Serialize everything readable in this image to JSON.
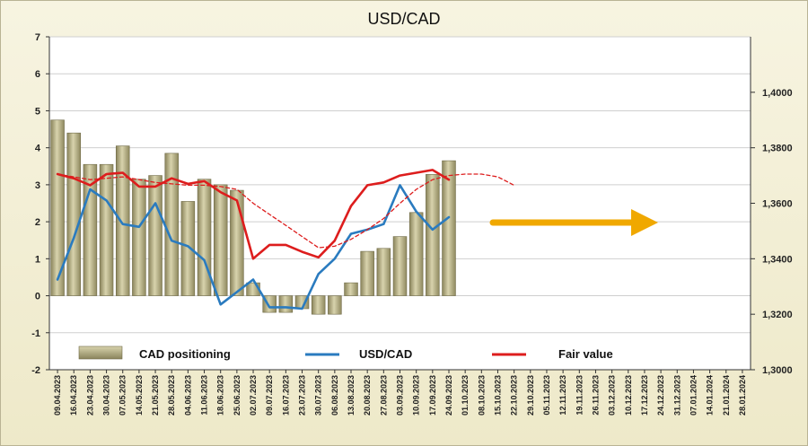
{
  "chart_data": {
    "type": "bar",
    "title": "USD/CAD",
    "x_labels": [
      "09.04.2023",
      "16.04.2023",
      "23.04.2023",
      "30.04.2023",
      "07.05.2023",
      "14.05.2023",
      "21.05.2023",
      "28.05.2023",
      "04.06.2023",
      "11.06.2023",
      "18.06.2023",
      "25.06.2023",
      "02.07.2023",
      "09.07.2023",
      "16.07.2023",
      "23.07.2023",
      "30.07.2023",
      "06.08.2023",
      "13.08.2023",
      "20.08.2023",
      "27.08.2023",
      "03.09.2023",
      "10.09.2023",
      "17.09.2023",
      "24.09.2023",
      "01.10.2023",
      "08.10.2023",
      "15.10.2023",
      "22.10.2023",
      "29.10.2023",
      "05.11.2023",
      "12.11.2023",
      "19.11.2023",
      "26.11.2023",
      "03.12.2023",
      "10.12.2023",
      "17.12.2023",
      "24.12.2023",
      "31.12.2023",
      "07.01.2024",
      "14.01.2024",
      "21.01.2024",
      "28.01.2024"
    ],
    "y_left": {
      "min": -2,
      "max": 7,
      "ticks": [
        -2,
        -1,
        0,
        1,
        2,
        3,
        4,
        5,
        6,
        7
      ]
    },
    "y_right": {
      "min": 1.3,
      "max": 1.42,
      "ticks": [
        "1,3000",
        "1,3200",
        "1,3400",
        "1,3600",
        "1,3800",
        "1,4000"
      ]
    },
    "series": [
      {
        "name": "CAD positioning",
        "kind": "bar",
        "axis": "left",
        "color": "#b2ab7e",
        "values": [
          4.75,
          4.4,
          3.55,
          3.55,
          4.05,
          3.15,
          3.25,
          3.85,
          2.55,
          3.15,
          3.0,
          2.85,
          0.35,
          -0.45,
          -0.45,
          -0.35,
          -0.5,
          -0.5,
          0.35,
          1.2,
          1.28,
          1.6,
          2.25,
          3.28,
          3.65
        ]
      },
      {
        "name": "USD/CAD",
        "kind": "line",
        "axis": "right",
        "color": "#2a7bbf",
        "values": [
          1.3325,
          1.3475,
          1.365,
          1.361,
          1.3525,
          1.3515,
          1.36,
          1.3465,
          1.3445,
          1.3395,
          1.3235,
          1.328,
          1.3325,
          1.3225,
          1.3225,
          1.322,
          1.3345,
          1.34,
          1.349,
          1.3505,
          1.3525,
          1.3665,
          1.357,
          1.3505,
          1.355
        ]
      },
      {
        "name": "Fair value",
        "kind": "line",
        "axis": "right",
        "color": "#dd1d1d",
        "values": [
          1.3705,
          1.369,
          1.3665,
          1.3705,
          1.371,
          1.366,
          1.366,
          1.369,
          1.367,
          1.368,
          1.364,
          1.361,
          1.34,
          1.345,
          1.345,
          1.3425,
          1.3405,
          1.3465,
          1.359,
          1.3665,
          1.3675,
          1.37,
          1.371,
          1.372,
          1.3685
        ]
      },
      {
        "name": "Fair value projection",
        "kind": "dashed-line",
        "axis": "right",
        "color": "#dd1d1d",
        "values": [
          1.3705,
          1.3695,
          1.3685,
          1.369,
          1.3695,
          1.3685,
          1.3675,
          1.367,
          1.3665,
          1.3665,
          1.366,
          1.365,
          1.36,
          1.356,
          1.352,
          1.348,
          1.344,
          1.3445,
          1.347,
          1.3505,
          1.3545,
          1.36,
          1.365,
          1.3685,
          1.37,
          1.3705,
          1.3705,
          1.3695,
          1.3665
        ]
      }
    ],
    "legend": [
      {
        "label": "CAD positioning",
        "symbol": "bar",
        "color": "#b2ab7e"
      },
      {
        "label": "USD/CAD",
        "symbol": "line",
        "color": "#2a7bbf"
      },
      {
        "label": "Fair value",
        "symbol": "line",
        "color": "#dd1d1d"
      }
    ],
    "legend_position": "bottom",
    "annotation": {
      "kind": "arrow",
      "color": "#f0a800",
      "direction": "right"
    },
    "grid": true
  }
}
